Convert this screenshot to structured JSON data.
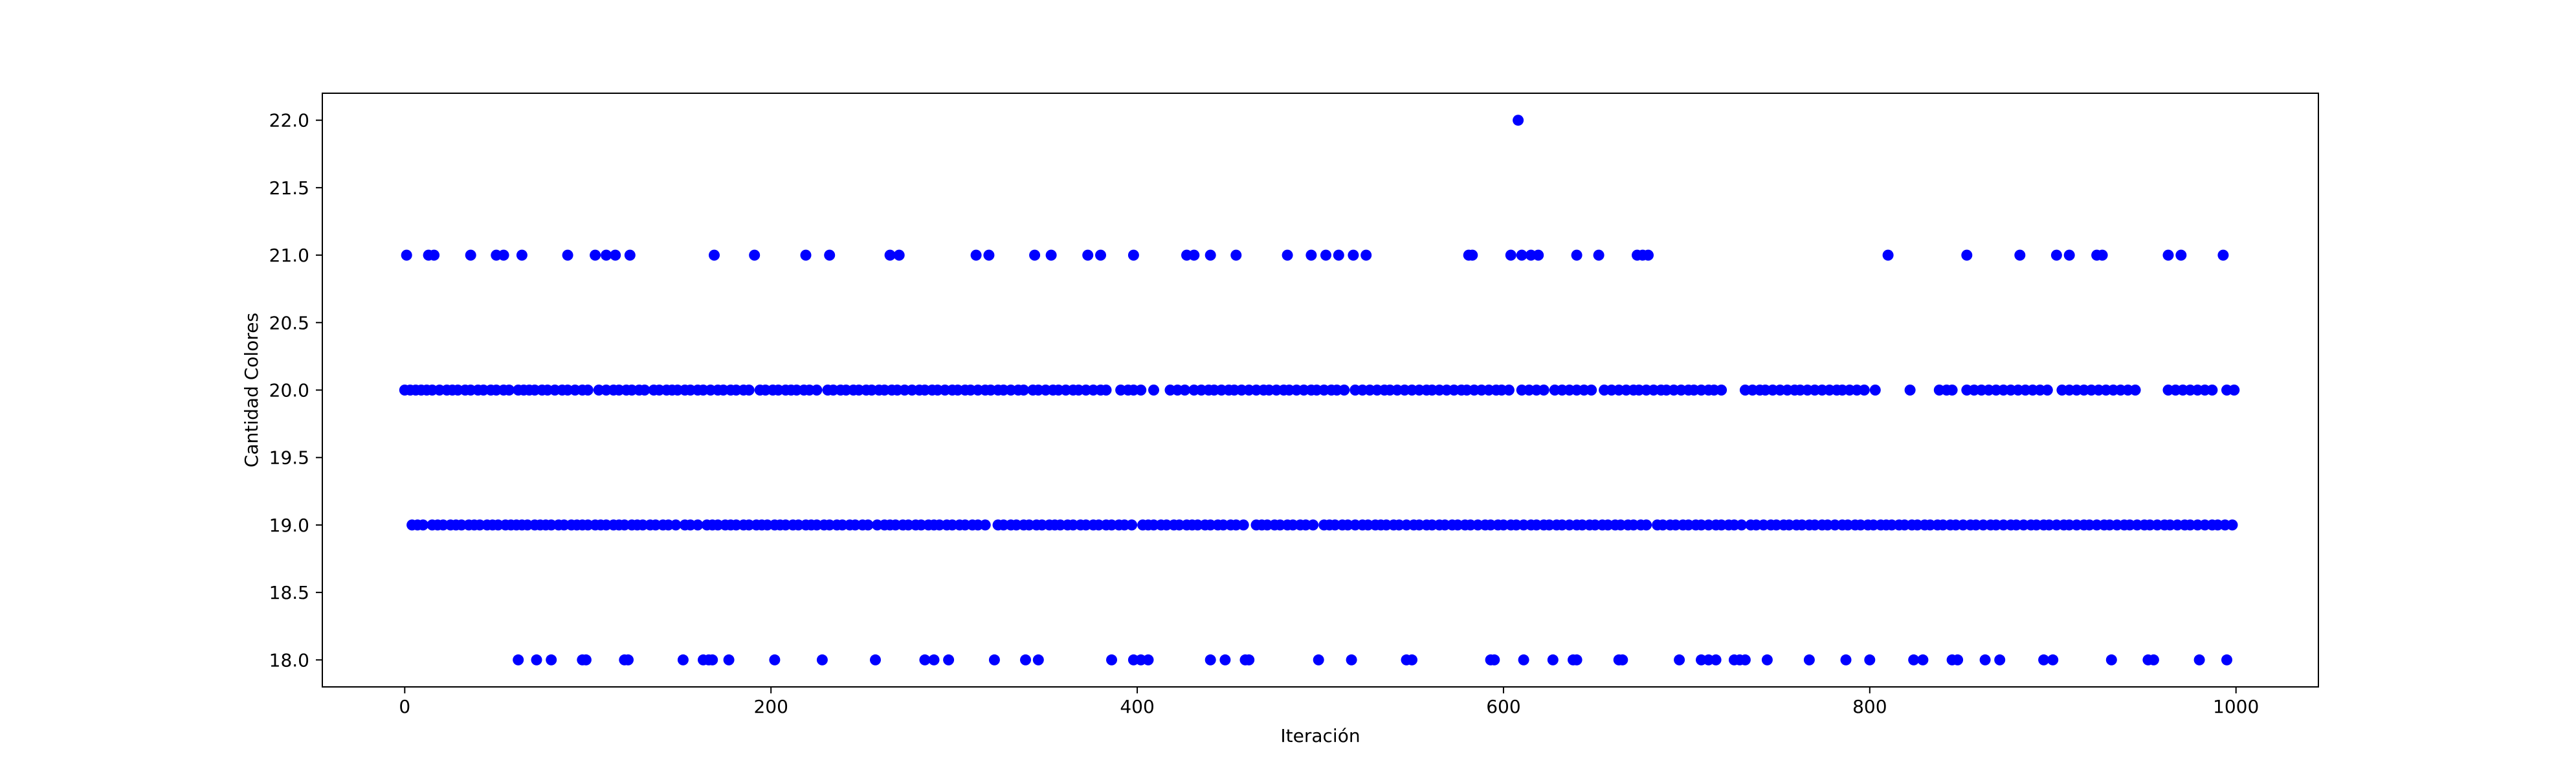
{
  "chart_data": {
    "type": "scatter",
    "xlabel": "Iteración",
    "ylabel": "Cantidad Colores",
    "xlim": [
      -45,
      1045
    ],
    "ylim": [
      17.8,
      22.2
    ],
    "x_ticks": [
      0,
      200,
      400,
      600,
      800,
      1000
    ],
    "y_ticks": [
      18.0,
      18.5,
      19.0,
      19.5,
      20.0,
      20.5,
      21.0,
      21.5,
      22.0
    ],
    "color": "#0000ff",
    "series": [
      {
        "values": [
          {
            "y": 18,
            "x": [
              62,
              72,
              80,
              97,
              99,
              120,
              122,
              152,
              163,
              166,
              168,
              177,
              202,
              228,
              257,
              284,
              289,
              297,
              322,
              339,
              346,
              386,
              398,
              402,
              406,
              440,
              448,
              459,
              461,
              499,
              517,
              547,
              550,
              593,
              595,
              611,
              627,
              638,
              640,
              663,
              665,
              696,
              708,
              712,
              716,
              726,
              729,
              732,
              744,
              767,
              787,
              800,
              824,
              829,
              845,
              848,
              863,
              871,
              895,
              900,
              932,
              952,
              955,
              980,
              995
            ]
          },
          {
            "y": 19,
            "x": [
              4,
              7,
              10,
              15,
              18,
              21,
              25,
              28,
              31,
              35,
              38,
              41,
              45,
              48,
              51,
              55,
              58,
              61,
              64,
              67,
              71,
              74,
              77,
              80,
              84,
              87,
              91,
              94,
              97,
              100,
              104,
              107,
              110,
              114,
              117,
              120,
              124,
              127,
              130,
              134,
              137,
              141,
              144,
              148,
              153,
              156,
              160,
              165,
              168,
              171,
              175,
              178,
              181,
              185,
              188,
              192,
              195,
              198,
              202,
              205,
              208,
              212,
              215,
              219,
              222,
              225,
              229,
              232,
              236,
              239,
              243,
              246,
              250,
              253,
              258,
              262,
              265,
              268,
              272,
              275,
              279,
              282,
              286,
              289,
              292,
              296,
              299,
              303,
              306,
              310,
              313,
              317,
              324,
              327,
              331,
              334,
              338,
              341,
              345,
              348,
              352,
              355,
              358,
              362,
              365,
              369,
              372,
              376,
              379,
              383,
              386,
              390,
              393,
              397,
              403,
              406,
              409,
              413,
              416,
              420,
              423,
              427,
              430,
              433,
              437,
              440,
              444,
              447,
              451,
              454,
              458,
              465,
              468,
              471,
              475,
              478,
              482,
              485,
              489,
              492,
              496,
              502,
              505,
              508,
              512,
              515,
              519,
              523,
              526,
              530,
              533,
              536,
              540,
              543,
              547,
              551,
              554,
              558,
              561,
              565,
              568,
              572,
              575,
              579,
              582,
              586,
              590,
              593,
              597,
              600,
              604,
              607,
              611,
              615,
              618,
              622,
              625,
              629,
              632,
              636,
              640,
              643,
              647,
              650,
              654,
              657,
              661,
              664,
              668,
              671,
              675,
              678,
              684,
              687,
              691,
              694,
              698,
              701,
              705,
              708,
              712,
              716,
              719,
              723,
              726,
              730,
              735,
              738,
              742,
              746,
              749,
              753,
              756,
              760,
              763,
              767,
              770,
              774,
              777,
              781,
              785,
              788,
              792,
              795,
              799,
              802,
              806,
              809,
              812,
              816,
              819,
              823,
              826,
              830,
              833,
              837,
              840,
              844,
              847,
              851,
              855,
              858,
              862,
              866,
              869,
              873,
              877,
              880,
              884,
              888,
              891,
              895,
              898,
              902,
              906,
              909,
              913,
              917,
              920,
              924,
              928,
              931,
              935,
              939,
              942,
              946,
              950,
              953,
              957,
              961,
              964,
              968,
              972,
              975,
              979,
              983,
              987,
              990,
              994,
              998
            ]
          },
          {
            "y": 20,
            "x": [
              0,
              3,
              6,
              9,
              12,
              15,
              19,
              23,
              26,
              29,
              33,
              36,
              40,
              43,
              47,
              50,
              54,
              57,
              62,
              65,
              68,
              71,
              75,
              78,
              82,
              86,
              89,
              93,
              97,
              100,
              106,
              110,
              114,
              117,
              121,
              124,
              128,
              131,
              136,
              139,
              143,
              146,
              149,
              153,
              156,
              160,
              163,
              167,
              171,
              174,
              178,
              181,
              185,
              188,
              194,
              197,
              201,
              204,
              208,
              211,
              214,
              218,
              221,
              225,
              231,
              234,
              238,
              241,
              245,
              248,
              252,
              255,
              259,
              262,
              266,
              269,
              273,
              277,
              281,
              284,
              288,
              291,
              295,
              299,
              302,
              306,
              309,
              313,
              317,
              320,
              324,
              327,
              331,
              335,
              338,
              343,
              346,
              350,
              354,
              357,
              361,
              365,
              368,
              372,
              376,
              380,
              383,
              391,
              395,
              398,
              402,
              409,
              418,
              422,
              426,
              431,
              435,
              439,
              442,
              446,
              450,
              453,
              457,
              461,
              465,
              469,
              472,
              476,
              480,
              483,
              487,
              491,
              495,
              498,
              502,
              506,
              509,
              513,
              519,
              523,
              527,
              531,
              535,
              538,
              542,
              546,
              550,
              554,
              558,
              561,
              565,
              569,
              573,
              577,
              580,
              584,
              588,
              592,
              596,
              599,
              603,
              610,
              614,
              618,
              622,
              628,
              632,
              636,
              640,
              644,
              648,
              655,
              659,
              663,
              667,
              671,
              674,
              678,
              682,
              686,
              689,
              693,
              697,
              701,
              704,
              708,
              712,
              715,
              719,
              732,
              736,
              740,
              743,
              747,
              751,
              755,
              759,
              762,
              766,
              770,
              774,
              778,
              782,
              785,
              789,
              793,
              797,
              803,
              822,
              838,
              842,
              845,
              853,
              857,
              861,
              865,
              869,
              873,
              877,
              881,
              885,
              889,
              893,
              897,
              905,
              909,
              913,
              917,
              921,
              925,
              929,
              933,
              937,
              941,
              945,
              963,
              967,
              971,
              975,
              979,
              983,
              987,
              995,
              999
            ]
          },
          {
            "y": 21,
            "x": [
              1,
              13,
              16,
              36,
              50,
              54,
              64,
              89,
              104,
              110,
              115,
              123,
              169,
              191,
              219,
              232,
              265,
              270,
              312,
              319,
              344,
              353,
              373,
              380,
              398,
              427,
              431,
              440,
              454,
              482,
              495,
              503,
              510,
              518,
              525,
              581,
              583,
              604,
              610,
              615,
              619,
              640,
              652,
              673,
              676,
              679,
              810,
              853,
              882,
              902,
              909,
              924,
              927,
              963,
              970,
              993
            ]
          },
          {
            "y": 22,
            "x": [
              608
            ]
          }
        ]
      }
    ]
  }
}
